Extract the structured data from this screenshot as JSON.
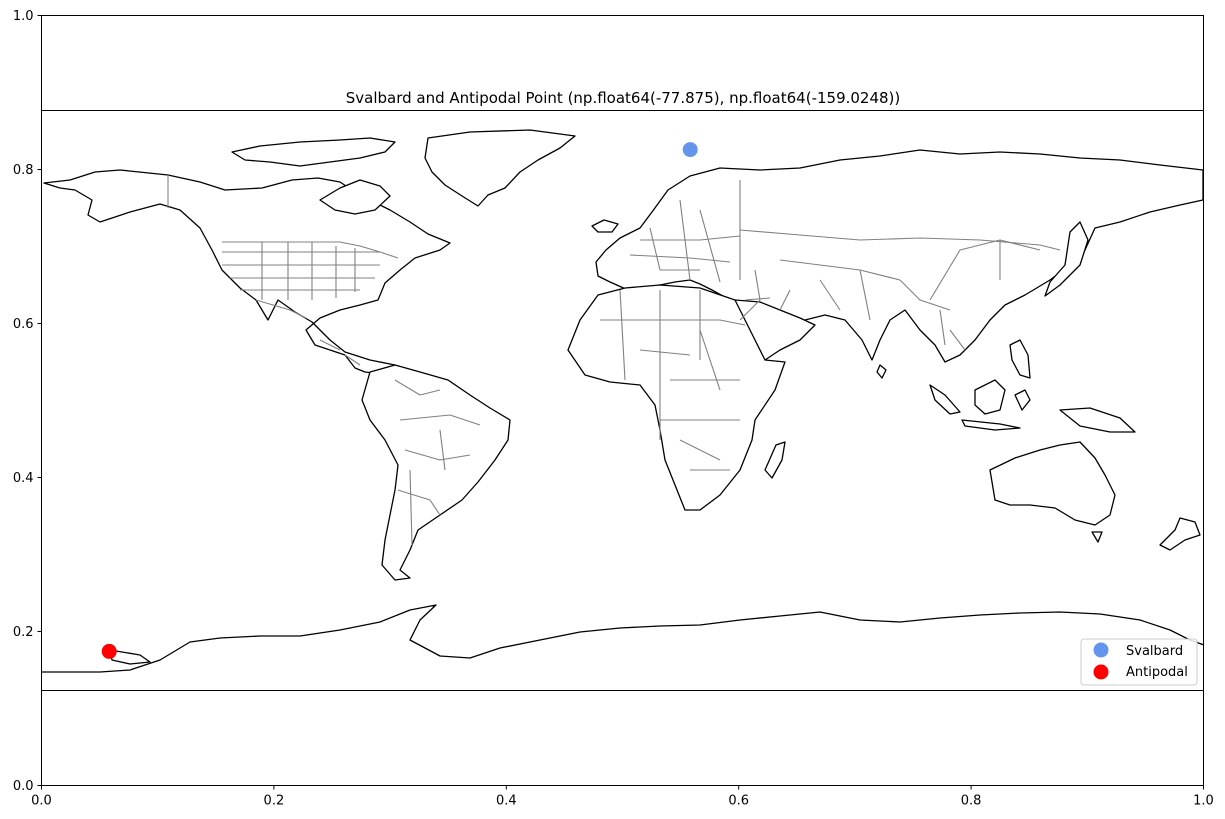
{
  "figure": {
    "title": "Svalbard and Antipodal Point (np.float64(-77.875), np.float64(-159.0248))",
    "x_ticks": [
      "0.0",
      "0.2",
      "0.4",
      "0.6",
      "0.8",
      "1.0"
    ],
    "y_ticks": [
      "0.0",
      "0.2",
      "0.4",
      "0.6",
      "0.8",
      "1.0"
    ],
    "map_projection": "PlateCarree",
    "map_extent": {
      "lon": [
        -180,
        180
      ],
      "lat": [
        -90,
        90
      ]
    }
  },
  "points": [
    {
      "name": "Svalbard",
      "lon": 20.9752,
      "lat": 77.875,
      "color": "#6495ED"
    },
    {
      "name": "Antipodal",
      "lon": -159.0248,
      "lat": -77.875,
      "color": "#FF0000"
    }
  ],
  "legend": {
    "placement": "lower-right",
    "entries": [
      {
        "label": "Svalbard",
        "color": "#6495ED"
      },
      {
        "label": "Antipodal",
        "color": "#FF0000"
      }
    ]
  },
  "colors": {
    "coastline": "#000000",
    "borders": "#808080",
    "land": "#ffffff"
  }
}
